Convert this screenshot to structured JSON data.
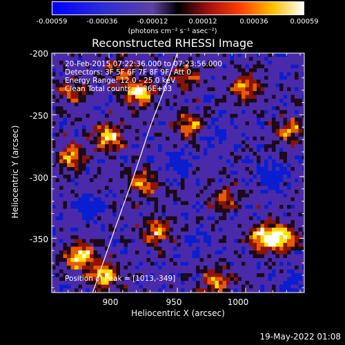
{
  "colorbar": {
    "ticks": [
      "-0.00059",
      "-0.00036",
      "-0.00012",
      "0.00012",
      "0.00036",
      "0.00059"
    ],
    "units": "(photons cm⁻² s⁻¹ asec⁻²)"
  },
  "header": {
    "title": "Reconstructed RHESSI Image"
  },
  "info": {
    "time_range": "20-Feb-2015 07:22:36.000 to 07:23:56.000",
    "detectors": "Detectors: 3F 5F 6F 7F 8F 9F, Att 0",
    "energy": "Energy Range: 12.0 - 25.0 keV",
    "clean": "Clean      Total counts: 1.86E+03",
    "peak": "Position of Peak = [1013,-349]"
  },
  "footer": {
    "date": "19-May-2022 01:08"
  },
  "chart_data": {
    "type": "heatmap",
    "title": "Reconstructed RHESSI Image",
    "xlabel": "Heliocentric X (arcsec)",
    "ylabel": "Heliocentric Y (arcsec)",
    "xlim": [
      858,
      1043
    ],
    "ylim": [
      -394,
      -200
    ],
    "x_ticks": [
      "900",
      "950",
      "1000"
    ],
    "x_tick_values": [
      900,
      950,
      1000
    ],
    "y_ticks": [
      "-200",
      "-250",
      "-300",
      "-350"
    ],
    "y_tick_values": [
      -200,
      -250,
      -300,
      -350
    ],
    "colorbar_range": [
      -0.00059,
      0.00059
    ],
    "peak_position": [
      1013,
      -349
    ],
    "limb_curve": [
      [
        888,
        -394
      ],
      [
        905,
        -340
      ],
      [
        918,
        -300
      ],
      [
        930,
        -260
      ],
      [
        942,
        -225
      ],
      [
        950,
        -200
      ]
    ],
    "colors": {
      "strong_negative": "#0a1ed0",
      "negative": "#4a2aa8",
      "zero": "#1a0a1a",
      "low_positive": "#8a1408",
      "positive": "#e85a00",
      "strong_positive": "#ffe000",
      "max": "#ffffff"
    },
    "bright_regions": [
      {
        "x": 878,
        "y": -365,
        "strength": 1.0
      },
      {
        "x": 897,
        "y": -380,
        "strength": 0.95
      },
      {
        "x": 922,
        "y": -232,
        "strength": 1.0
      },
      {
        "x": 900,
        "y": -268,
        "strength": 0.9
      },
      {
        "x": 872,
        "y": -285,
        "strength": 0.75
      },
      {
        "x": 925,
        "y": -305,
        "strength": 0.7
      },
      {
        "x": 960,
        "y": -258,
        "strength": 0.75
      },
      {
        "x": 935,
        "y": -345,
        "strength": 0.8
      },
      {
        "x": 1000,
        "y": -228,
        "strength": 0.75
      },
      {
        "x": 1027,
        "y": -350,
        "strength": 0.95
      },
      {
        "x": 1013,
        "y": -349,
        "strength": 1.0
      },
      {
        "x": 978,
        "y": -385,
        "strength": 0.75
      },
      {
        "x": 1033,
        "y": -263,
        "strength": 0.7
      },
      {
        "x": 955,
        "y": -220,
        "strength": 0.55
      },
      {
        "x": 872,
        "y": -232,
        "strength": 0.6
      },
      {
        "x": 985,
        "y": -318,
        "strength": 0.55
      },
      {
        "x": 908,
        "y": -215,
        "strength": 0.5
      }
    ],
    "dark_regions": [
      {
        "x": 885,
        "y": -325,
        "strength": 0.9
      },
      {
        "x": 950,
        "y": -290,
        "strength": 0.7
      },
      {
        "x": 1020,
        "y": -300,
        "strength": 0.75
      },
      {
        "x": 975,
        "y": -265,
        "strength": 0.6
      },
      {
        "x": 1035,
        "y": -390,
        "strength": 0.5
      },
      {
        "x": 965,
        "y": -355,
        "strength": 0.5
      }
    ]
  }
}
